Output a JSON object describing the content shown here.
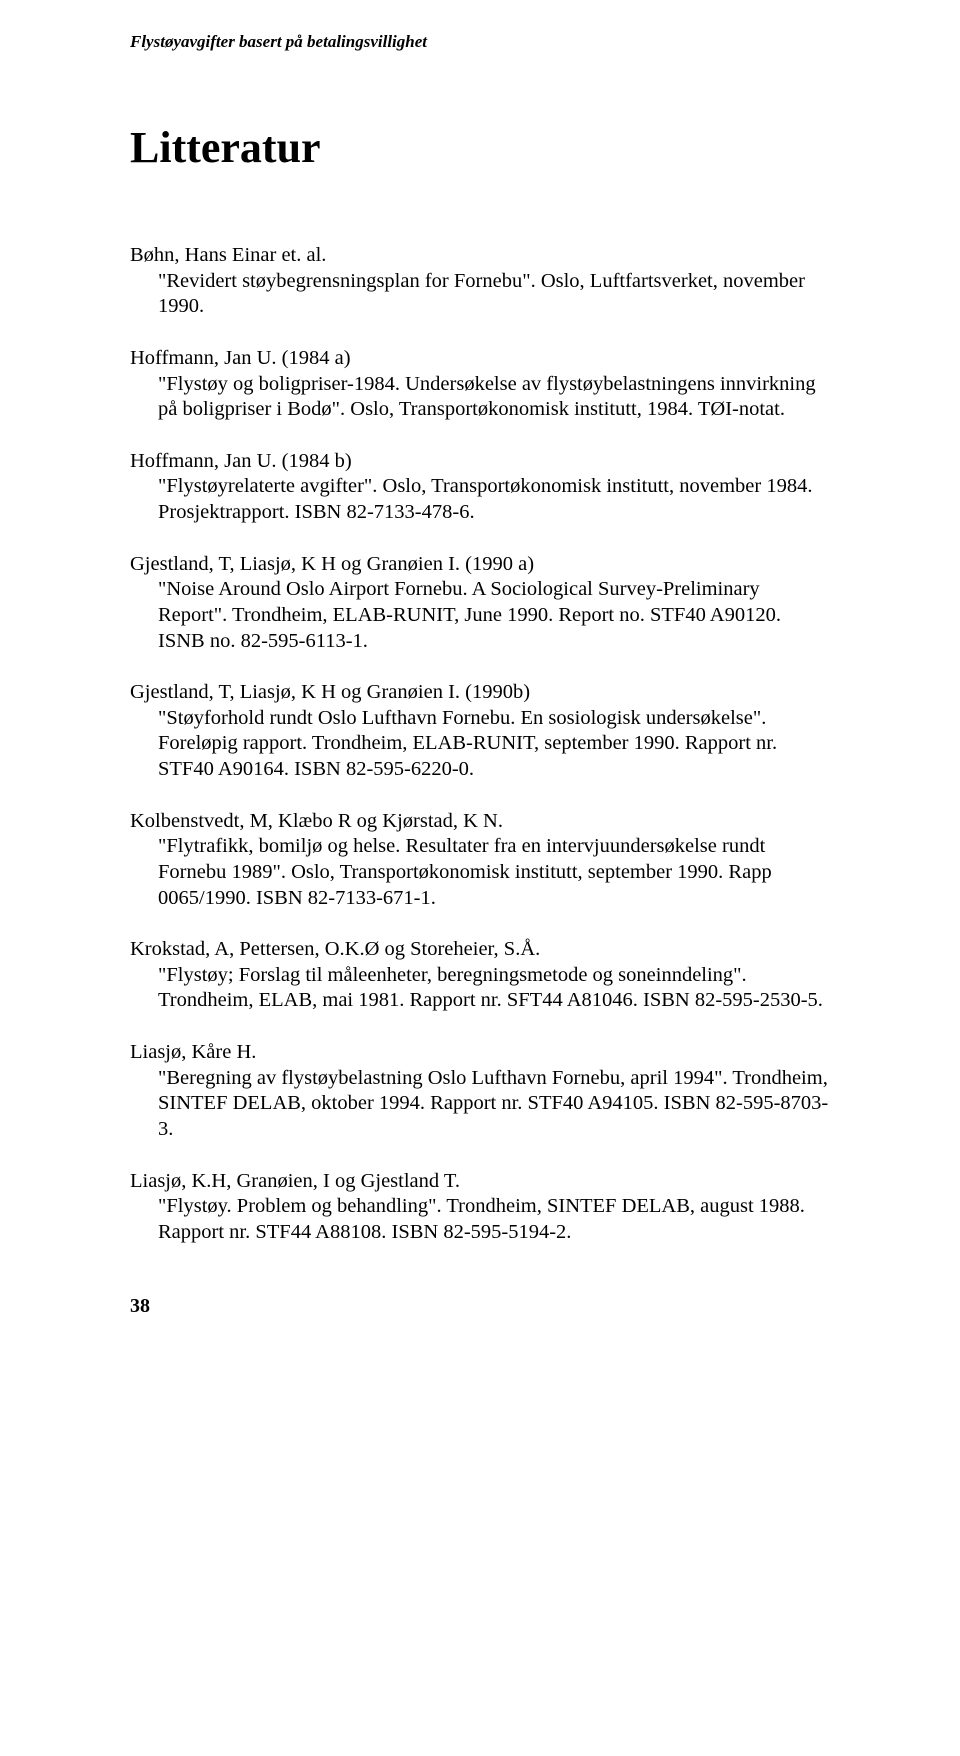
{
  "runningHead": "Flystøyavgifter basert på betalingsvillighet",
  "title": "Litteratur",
  "entries": [
    {
      "head": "Bøhn, Hans Einar et. al.",
      "body": "\"Revidert støybegrensningsplan for Fornebu\". Oslo, Luftfartsverket, november 1990."
    },
    {
      "head": "Hoffmann, Jan U. (1984 a)",
      "body": "\"Flystøy og boligpriser-1984. Undersøkelse av flystøybelastningens innvirkning på boligpriser i Bodø\". Oslo, Transportøkonomisk institutt, 1984. TØI-notat."
    },
    {
      "head": "Hoffmann, Jan U. (1984 b)",
      "body": "\"Flystøyrelaterte avgifter\". Oslo, Transportøkonomisk institutt, november 1984. Prosjektrapport. ISBN 82-7133-478-6."
    },
    {
      "head": "Gjestland, T, Liasjø, K H og Granøien I. (1990 a)",
      "body": "\"Noise Around Oslo Airport Fornebu. A Sociological Survey-Preliminary Report\". Trondheim, ELAB-RUNIT, June 1990. Report no. STF40 A90120. ISNB no. 82-595-6113-1."
    },
    {
      "head": "Gjestland, T, Liasjø, K H og Granøien I. (1990b)",
      "body": "\"Støyforhold rundt Oslo Lufthavn Fornebu. En sosiologisk undersøkelse\". Foreløpig rapport. Trondheim, ELAB-RUNIT, september 1990. Rapport nr. STF40 A90164. ISBN 82-595-6220-0."
    },
    {
      "head": "Kolbenstvedt, M, Klæbo R og Kjørstad, K N.",
      "body": "\"Flytrafikk, bomiljø og helse. Resultater fra en intervjuundersøkelse rundt Fornebu 1989\". Oslo, Transportøkonomisk institutt, september 1990. Rapp 0065/1990. ISBN 82-7133-671-1."
    },
    {
      "head": "Krokstad, A, Pettersen, O.K.Ø og Storeheier, S.Å.",
      "body": "\"Flystøy; Forslag til måleenheter, beregningsmetode og soneinndeling\". Trondheim, ELAB, mai 1981. Rapport nr. SFT44 A81046. ISBN 82-595-2530-5."
    },
    {
      "head": "Liasjø, Kåre H.",
      "body": "\"Beregning av flystøybelastning Oslo Lufthavn Fornebu, april 1994\". Trondheim, SINTEF DELAB, oktober 1994. Rapport nr. STF40 A94105. ISBN 82-595-8703-3."
    },
    {
      "head": "Liasjø, K.H, Granøien, I og Gjestland T.",
      "body": "\"Flystøy. Problem og behandling\". Trondheim, SINTEF DELAB, august 1988. Rapport nr. STF44 A88108. ISBN 82-595-5194-2."
    }
  ],
  "pageNumber": "38"
}
